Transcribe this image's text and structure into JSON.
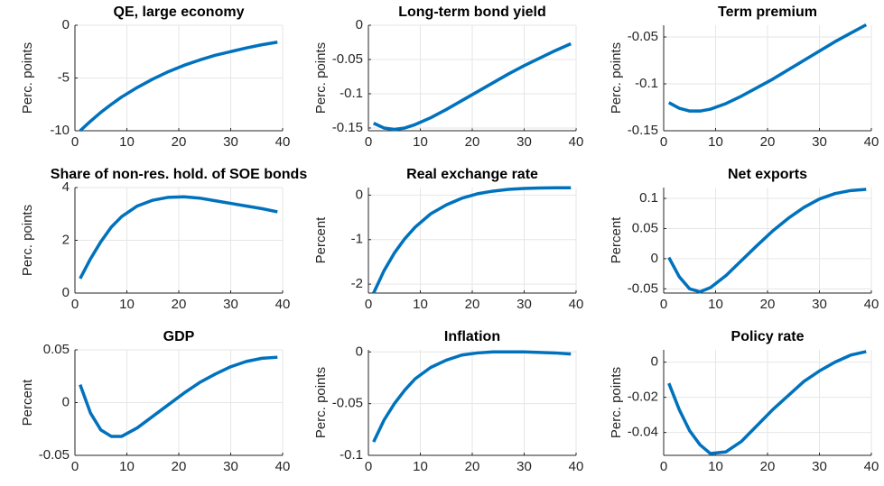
{
  "chart_data": [
    {
      "type": "line",
      "title": "QE, large economy",
      "ylabel": "Perc. points",
      "x": [
        1,
        3,
        5,
        7,
        9,
        12,
        15,
        18,
        21,
        24,
        27,
        30,
        33,
        36,
        39
      ],
      "series": [
        {
          "color": "#0072bd",
          "values": [
            -10,
            -9.1,
            -8.25,
            -7.5,
            -6.8,
            -5.9,
            -5.1,
            -4.4,
            -3.8,
            -3.3,
            -2.85,
            -2.5,
            -2.15,
            -1.85,
            -1.6
          ]
        }
      ],
      "xlim": [
        0,
        40
      ],
      "xticks": [
        0,
        10,
        20,
        30,
        40
      ],
      "ylim": [
        -10,
        0
      ],
      "yticks": [
        -10,
        -5,
        0
      ],
      "grid": true
    },
    {
      "type": "line",
      "title": "Long-term bond yield",
      "ylabel": "Perc. points",
      "x": [
        1,
        3,
        5,
        7,
        9,
        12,
        15,
        18,
        21,
        24,
        27,
        30,
        33,
        36,
        39
      ],
      "series": [
        {
          "color": "#0072bd",
          "values": [
            -0.143,
            -0.15,
            -0.152,
            -0.15,
            -0.145,
            -0.135,
            -0.123,
            -0.11,
            -0.097,
            -0.084,
            -0.071,
            -0.059,
            -0.048,
            -0.037,
            -0.027
          ]
        }
      ],
      "xlim": [
        0,
        40
      ],
      "xticks": [
        0,
        10,
        20,
        30,
        40
      ],
      "ylim": [
        -0.154,
        0
      ],
      "yticks": [
        -0.15,
        -0.1,
        -0.05,
        0
      ],
      "grid": true
    },
    {
      "type": "line",
      "title": "Term premium",
      "ylabel": "Perc. points",
      "x": [
        1,
        3,
        5,
        7,
        9,
        12,
        15,
        18,
        21,
        24,
        27,
        30,
        33,
        36,
        39
      ],
      "series": [
        {
          "color": "#0072bd",
          "values": [
            -0.12,
            -0.126,
            -0.129,
            -0.129,
            -0.127,
            -0.121,
            -0.113,
            -0.104,
            -0.095,
            -0.085,
            -0.075,
            -0.065,
            -0.055,
            -0.046,
            -0.037
          ]
        }
      ],
      "xlim": [
        0,
        40
      ],
      "xticks": [
        0,
        10,
        20,
        30,
        40
      ],
      "ylim": [
        -0.15,
        -0.0375
      ],
      "yticks": [
        -0.15,
        -0.1,
        -0.05
      ],
      "grid": true
    },
    {
      "type": "line",
      "title": "Share of non-res. hold. of SOE bonds",
      "ylabel": "Perc. points",
      "x": [
        1,
        3,
        5,
        7,
        9,
        12,
        15,
        18,
        21,
        24,
        27,
        30,
        33,
        36,
        39
      ],
      "series": [
        {
          "color": "#0072bd",
          "values": [
            0.55,
            1.3,
            1.95,
            2.5,
            2.9,
            3.3,
            3.52,
            3.63,
            3.65,
            3.6,
            3.5,
            3.4,
            3.3,
            3.2,
            3.08
          ]
        }
      ],
      "xlim": [
        0,
        40
      ],
      "xticks": [
        0,
        10,
        20,
        30,
        40
      ],
      "ylim": [
        0,
        4
      ],
      "yticks": [
        0,
        2,
        4
      ],
      "grid": true
    },
    {
      "type": "line",
      "title": "Real exchange rate",
      "ylabel": "Percent",
      "x": [
        1,
        3,
        5,
        7,
        9,
        12,
        15,
        18,
        21,
        24,
        27,
        30,
        33,
        36,
        39
      ],
      "series": [
        {
          "color": "#0072bd",
          "values": [
            -2.2,
            -1.7,
            -1.3,
            -0.98,
            -0.72,
            -0.42,
            -0.22,
            -0.07,
            0.03,
            0.09,
            0.13,
            0.15,
            0.16,
            0.165,
            0.165
          ]
        }
      ],
      "xlim": [
        0,
        40
      ],
      "xticks": [
        0,
        10,
        20,
        30,
        40
      ],
      "ylim": [
        -2.2,
        0.17
      ],
      "yticks": [
        -2,
        -1,
        0
      ],
      "grid": true
    },
    {
      "type": "line",
      "title": "Net exports",
      "ylabel": "Percent",
      "x": [
        1,
        3,
        5,
        7,
        9,
        12,
        15,
        18,
        21,
        24,
        27,
        30,
        33,
        36,
        39
      ],
      "series": [
        {
          "color": "#0072bd",
          "values": [
            0.002,
            -0.03,
            -0.05,
            -0.055,
            -0.048,
            -0.028,
            -0.003,
            0.022,
            0.046,
            0.067,
            0.085,
            0.099,
            0.108,
            0.113,
            0.115
          ]
        }
      ],
      "xlim": [
        0,
        40
      ],
      "xticks": [
        0,
        10,
        20,
        30,
        40
      ],
      "ylim": [
        -0.057,
        0.118
      ],
      "yticks": [
        -0.05,
        0,
        0.05,
        0.1
      ],
      "grid": true
    },
    {
      "type": "line",
      "title": "GDP",
      "ylabel": "Percent",
      "x": [
        1,
        3,
        5,
        7,
        9,
        12,
        15,
        18,
        21,
        24,
        27,
        30,
        33,
        36,
        39
      ],
      "series": [
        {
          "color": "#0072bd",
          "values": [
            0.017,
            -0.01,
            -0.026,
            -0.032,
            -0.032,
            -0.024,
            -0.013,
            -0.002,
            0.009,
            0.019,
            0.027,
            0.034,
            0.039,
            0.042,
            0.043
          ]
        }
      ],
      "xlim": [
        0,
        40
      ],
      "xticks": [
        0,
        10,
        20,
        30,
        40
      ],
      "ylim": [
        -0.05,
        0.05
      ],
      "yticks": [
        -0.05,
        0,
        0.05
      ],
      "grid": true
    },
    {
      "type": "line",
      "title": "Inflation",
      "ylabel": "Perc. points",
      "x": [
        1,
        3,
        5,
        7,
        9,
        12,
        15,
        18,
        21,
        24,
        27,
        30,
        33,
        36,
        39
      ],
      "series": [
        {
          "color": "#0072bd",
          "values": [
            -0.087,
            -0.066,
            -0.05,
            -0.037,
            -0.026,
            -0.015,
            -0.008,
            -0.003,
            -0.001,
            0,
            0,
            0,
            -0.0005,
            -0.001,
            -0.002
          ]
        }
      ],
      "xlim": [
        0,
        40
      ],
      "xticks": [
        0,
        10,
        20,
        30,
        40
      ],
      "ylim": [
        -0.1,
        0.002
      ],
      "yticks": [
        -0.1,
        -0.05,
        0
      ],
      "grid": true
    },
    {
      "type": "line",
      "title": "Policy rate",
      "ylabel": "Perc. points",
      "x": [
        1,
        3,
        5,
        7,
        9,
        12,
        15,
        18,
        21,
        24,
        27,
        30,
        33,
        36,
        39
      ],
      "series": [
        {
          "color": "#0072bd",
          "values": [
            -0.012,
            -0.027,
            -0.039,
            -0.047,
            -0.052,
            -0.051,
            -0.045,
            -0.036,
            -0.027,
            -0.019,
            -0.011,
            -0.005,
            0,
            0.004,
            0.006
          ]
        }
      ],
      "xlim": [
        0,
        40
      ],
      "xticks": [
        0,
        10,
        20,
        30,
        40
      ],
      "ylim": [
        -0.053,
        0.007
      ],
      "yticks": [
        -0.04,
        -0.02,
        0
      ],
      "grid": true
    }
  ]
}
